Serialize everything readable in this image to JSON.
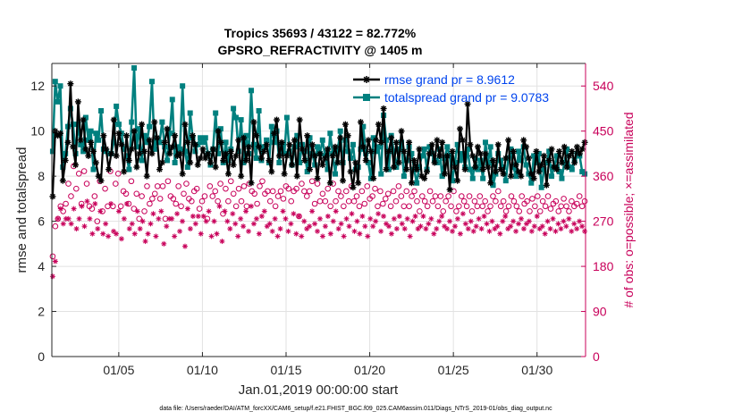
{
  "chart_data": {
    "type": "line",
    "title_line1": "Tropics 35693 / 43122 = 82.772%",
    "title_line2": "GPSRO_REFRACTIVITY @ 1405 m",
    "xlabel": "Jan.01,2019 00:00:00 start",
    "ylabel": "rmse and totalspread",
    "ylabel_right": "# of obs: o=possible; ×=assimilated",
    "xlim": [
      1.0,
      32.9
    ],
    "ylim": [
      0,
      13
    ],
    "ylim_right": [
      0,
      585
    ],
    "xticks": [
      5,
      10,
      15,
      20,
      25,
      30
    ],
    "xtick_labels": [
      "01/05",
      "01/10",
      "01/15",
      "01/20",
      "01/25",
      "01/30"
    ],
    "yticks": [
      0,
      2,
      4,
      6,
      8,
      10,
      12
    ],
    "ytick_labels": [
      "0",
      "2",
      "4",
      "6",
      "8",
      "10",
      "12"
    ],
    "yticks_right": [
      0,
      90,
      180,
      270,
      360,
      450,
      540
    ],
    "ytick_labels_right": [
      "0",
      "90",
      "180",
      "270",
      "360",
      "450",
      "540"
    ],
    "grid": true,
    "legend_position": "top-right",
    "series": [
      {
        "name": "rmse grand pr = 8.9612",
        "color": "#000000",
        "marker": "asterisk",
        "values": [
          7.1,
          10.0,
          9.8,
          9.9,
          7.8,
          8.7,
          9.5,
          12.1,
          9.3,
          8.5,
          11.3,
          9.6,
          10.5,
          9.2,
          8.9,
          9.5,
          9.1,
          8.6,
          8.0,
          7.8,
          9.8,
          9.2,
          8.3,
          9.0,
          10.5,
          8.9,
          9.9,
          9.4,
          8.2,
          9.8,
          8.7,
          9.2,
          10.0,
          8.4,
          9.0,
          10.3,
          9.1,
          8.0,
          9.6,
          9.0,
          10.4,
          9.7,
          8.3,
          8.6,
          9.5,
          10.1,
          9.0,
          9.3,
          9.8,
          8.9,
          9.0,
          8.1,
          10.3,
          9.5,
          8.6,
          9.8,
          9.4,
          8.5,
          8.8,
          9.2,
          8.8,
          9.0,
          8.6,
          9.2,
          8.4,
          10.0,
          9.5,
          8.7,
          9.0,
          8.1,
          9.1,
          8.5,
          8.9,
          9.6,
          8.0,
          9.7,
          8.7,
          9.3,
          7.7,
          10.4,
          9.8,
          9.3,
          8.8,
          9.1,
          9.4,
          8.7,
          8.2,
          9.9,
          10.5,
          8.9,
          9.5,
          8.1,
          8.9,
          9.4,
          8.5,
          9.6,
          8.0,
          10.5,
          9.2,
          8.7,
          9.8,
          8.3,
          9.4,
          8.9,
          7.9,
          9.0,
          8.5,
          8.8,
          9.2,
          7.7,
          8.9,
          9.3,
          8.6,
          9.7,
          7.8,
          10.3,
          9.8,
          8.2,
          7.5,
          8.6,
          7.7,
          10.4,
          9.3,
          8.7,
          9.6,
          9.1,
          7.9,
          9.6,
          10.3,
          9.5,
          11.0,
          8.3,
          9.1,
          9.7,
          8.4,
          9.5,
          8.6,
          10.0,
          9.1,
          8.3,
          9.5,
          7.7,
          8.7,
          8.3,
          9.2,
          8.0,
          7.9,
          8.2,
          9.0,
          9.4,
          8.6,
          9.6,
          8.9,
          9.5,
          8.1,
          8.9,
          7.4,
          9.1,
          8.4,
          7.8,
          10.1,
          9.6,
          8.3,
          11.2,
          9.4,
          8.9,
          8.4,
          9.3,
          9.0,
          8.3,
          9.0,
          8.4,
          7.7,
          8.7,
          8.2,
          9.4,
          8.3,
          8.1,
          8.8,
          9.6,
          8.0,
          9.1,
          8.5,
          8.2,
          8.0,
          9.6,
          9.3,
          8.8,
          8.1,
          7.9,
          9.1,
          8.2,
          8.5,
          8.9,
          7.6,
          8.7,
          9.2,
          8.4,
          8.3,
          9.1,
          8.6,
          9.3,
          8.4,
          8.9,
          9.1,
          8.6,
          9.3,
          9.0,
          9.2,
          9.5
        ]
      },
      {
        "name": "totalspread grand pr = 9.0783",
        "color": "#00807f",
        "marker": "square",
        "values": [
          9.1,
          12.2,
          11.3,
          12.0,
          8.4,
          9.0,
          10.2,
          11.0,
          10.3,
          9.0,
          10.3,
          9.4,
          9.1,
          10.6,
          9.6,
          10.0,
          8.3,
          9.9,
          9.6,
          10.9,
          9.2,
          9.1,
          9.0,
          9.0,
          9.5,
          11.1,
          10.3,
          9.9,
          9.2,
          8.9,
          8.3,
          10.4,
          12.8,
          9.3,
          10.1,
          8.7,
          9.8,
          9.5,
          10.2,
          12.2,
          9.2,
          9.6,
          9.5,
          10.4,
          9.3,
          8.7,
          9.9,
          11.4,
          8.6,
          9.3,
          9.2,
          12.0,
          9.1,
          8.4,
          10.8,
          9.7,
          9.1,
          9.4,
          9.7,
          9.5,
          9.7,
          9.0,
          8.5,
          9.2,
          10.8,
          9.0,
          10.1,
          8.6,
          9.5,
          8.7,
          9.2,
          11.0,
          10.6,
          9.1,
          10.5,
          8.6,
          9.8,
          9.0,
          11.8,
          9.4,
          8.8,
          10.9,
          8.7,
          9.3,
          9.6,
          8.6,
          10.2,
          9.5,
          10.0,
          8.6,
          9.4,
          9.0,
          10.6,
          9.1,
          8.5,
          9.3,
          9.8,
          8.6,
          9.4,
          9.1,
          8.2,
          9.7,
          9.0,
          8.5,
          9.3,
          9.0,
          9.6,
          8.9,
          8.3,
          9.9,
          9.0,
          8.1,
          9.2,
          10.0,
          8.6,
          9.6,
          9.1,
          8.8,
          9.4,
          8.3,
          8.4,
          9.2,
          10.2,
          9.0,
          8.6,
          7.9,
          9.7,
          9.1,
          9.3,
          8.1,
          10.7,
          9.6,
          8.3,
          9.8,
          9.1,
          8.4,
          9.2,
          9.5,
          8.0,
          8.7,
          9.3,
          9.0,
          8.3,
          7.7,
          8.4,
          8.9,
          9.2,
          8.3,
          9.3,
          9.0,
          8.7,
          8.6,
          9.2,
          8.0,
          8.8,
          9.3,
          8.9,
          7.8,
          8.6,
          9.4,
          8.7,
          9.0,
          8.4,
          9.2,
          8.3,
          7.9,
          8.8,
          8.3,
          8.7,
          7.9,
          9.5,
          8.6,
          9.3,
          7.6,
          8.1,
          9.0,
          8.7,
          8.4,
          7.8,
          8.8,
          9.2,
          8.4,
          8.0,
          9.1,
          8.7,
          9.3,
          8.5,
          8.1,
          7.7,
          8.9,
          8.6,
          9.0,
          7.5,
          8.3,
          8.6,
          9.1,
          8.0,
          8.4,
          8.9,
          8.2,
          7.9,
          8.6,
          9.2,
          8.4,
          8.3,
          8.7,
          9.0,
          8.9,
          8.2,
          8.1
        ]
      },
      {
        "name": "possible obs",
        "axis": "right",
        "color": "#c8005a",
        "marker": "circle",
        "values": [
          200,
          260,
          275,
          300,
          290,
          305,
          345,
          320,
          380,
          335,
          365,
          305,
          370,
          345,
          300,
          295,
          320,
          270,
          350,
          290,
          335,
          300,
          370,
          300,
          345,
          365,
          300,
          330,
          325,
          305,
          350,
          295,
          325,
          275,
          320,
          290,
          340,
          305,
          315,
          325,
          340,
          315,
          340,
          275,
          350,
          320,
          315,
          305,
          340,
          300,
          325,
          345,
          315,
          310,
          330,
          335,
          295,
          310,
          320,
          275,
          340,
          320,
          330,
          310,
          345,
          285,
          335,
          310,
          350,
          325,
          300,
          335,
          310,
          340,
          300,
          345,
          330,
          325,
          305,
          340,
          350,
          325,
          330,
          310,
          330,
          300,
          320,
          330,
          315,
          340,
          335,
          310,
          330,
          335,
          280,
          345,
          330,
          320,
          330,
          350,
          305,
          345,
          310,
          325,
          310,
          335,
          300,
          345,
          310,
          330,
          320,
          300,
          330,
          310,
          340,
          310,
          320,
          300,
          330,
          305,
          340,
          315,
          320,
          335,
          300,
          330,
          305,
          315,
          325,
          300,
          330,
          310,
          340,
          320,
          300,
          330,
          300,
          320,
          330,
          310,
          290,
          320,
          310,
          300,
          330,
          310,
          320,
          300,
          320,
          290,
          310,
          320,
          300,
          330,
          290,
          300,
          320,
          310,
          300,
          320,
          290,
          310,
          300,
          320,
          300,
          310,
          290,
          300,
          320,
          310,
          330,
          300,
          310,
          290,
          300,
          320,
          310,
          300,
          290,
          320,
          305,
          310,
          290,
          315,
          300,
          320,
          290,
          310,
          300,
          320,
          295,
          305,
          310,
          290,
          300,
          315,
          300,
          290,
          310,
          300,
          305,
          320,
          300,
          310
        ]
      },
      {
        "name": "assimilated obs",
        "axis": "right",
        "color": "#c8005a",
        "marker": "asterisk",
        "values": [
          160,
          190,
          275,
          295,
          265,
          275,
          275,
          265,
          295,
          255,
          275,
          300,
          260,
          310,
          275,
          245,
          305,
          255,
          290,
          245,
          265,
          240,
          305,
          250,
          245,
          290,
          235,
          275,
          305,
          255,
          265,
          245,
          290,
          255,
          270,
          230,
          245,
          265,
          285,
          240,
          275,
          290,
          225,
          260,
          275,
          275,
          240,
          285,
          250,
          270,
          220,
          295,
          255,
          280,
          265,
          280,
          245,
          280,
          270,
          290,
          240,
          270,
          245,
          300,
          230,
          290,
          270,
          255,
          285,
          265,
          240,
          275,
          260,
          290,
          250,
          300,
          265,
          275,
          245,
          280,
          290,
          260,
          265,
          250,
          275,
          240,
          255,
          290,
          275,
          250,
          265,
          285,
          245,
          280,
          240,
          270,
          255,
          260,
          290,
          265,
          250,
          275,
          240,
          260,
          280,
          245,
          270,
          290,
          255,
          265,
          240,
          275,
          260,
          285,
          250,
          270,
          245,
          280,
          260,
          240,
          275,
          260,
          270,
          285,
          250,
          280,
          265,
          260,
          245,
          275,
          255,
          280,
          265,
          255,
          275,
          240,
          270,
          280,
          255,
          260,
          280,
          255,
          265,
          275,
          245,
          255,
          270,
          280,
          260,
          255,
          270,
          250,
          260,
          275,
          245,
          285,
          265,
          255,
          270,
          250,
          260,
          275,
          255,
          280,
          265,
          250,
          270,
          255,
          260,
          245,
          270,
          280,
          255,
          260,
          270,
          250,
          265,
          275,
          255,
          265,
          270,
          250,
          260,
          280,
          255,
          260,
          245,
          270,
          255,
          275,
          250,
          265,
          255,
          270,
          260,
          275,
          250,
          265,
          255,
          270,
          260,
          250
        ]
      }
    ],
    "footer": "data file: /Users/raeder/DAI/ATM_forcXX/CAM6_setup/f.e21.FHIST_BGC.f09_025.CAM6assim.011/Diags_NTrS_2019-01/obs_diag_output.nc"
  },
  "colors": {
    "rmse": "#000000",
    "spread": "#00807f",
    "obs": "#c8005a",
    "legend_text": "#0044ee",
    "grid": "#e2e2e2"
  }
}
